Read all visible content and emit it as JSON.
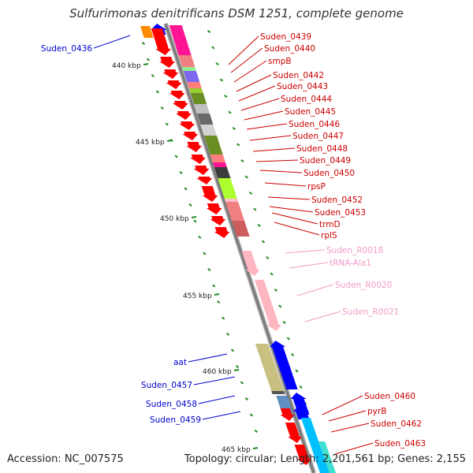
{
  "title": "Sulfurimonas denitrificans DSM 1251, complete genome",
  "footer": {
    "accession": "Accession: NC_007575",
    "summary": "Topology: circular; Length: 2,201,561 bp; Genes: 2,155"
  },
  "colors": {
    "backbone": "#7a7a7a",
    "forward_label": "#0000cc",
    "reverse_label": "#cc0000",
    "rna_label": "#f09ac8",
    "tick": "#228b22"
  },
  "scale_labels": [
    "440 kbp",
    "445 kbp",
    "450 kbp",
    "455 kbp",
    "460 kbp",
    "465 kbp"
  ],
  "genes_forward": [
    {
      "label": "Suden_0436"
    },
    {
      "label": "aat"
    },
    {
      "label": "Suden_0457"
    },
    {
      "label": "Suden_0458"
    },
    {
      "label": "Suden_0459"
    }
  ],
  "genes_reverse": [
    {
      "label": "Suden_0439"
    },
    {
      "label": "Suden_0440"
    },
    {
      "label": "smpB"
    },
    {
      "label": "Suden_0442"
    },
    {
      "label": "Suden_0443"
    },
    {
      "label": "Suden_0444"
    },
    {
      "label": "Suden_0445"
    },
    {
      "label": "Suden_0446"
    },
    {
      "label": "Suden_0447"
    },
    {
      "label": "Suden_0448"
    },
    {
      "label": "Suden_0449"
    },
    {
      "label": "Suden_0450"
    },
    {
      "label": "rpsP"
    },
    {
      "label": "Suden_0452"
    },
    {
      "label": "Suden_0453"
    },
    {
      "label": "trmD"
    },
    {
      "label": "rplS"
    },
    {
      "label": "Suden_0460"
    },
    {
      "label": "pyrB"
    },
    {
      "label": "Suden_0462"
    },
    {
      "label": "Suden_0463"
    }
  ],
  "genes_rna": [
    {
      "label": "Suden_R0018"
    },
    {
      "label": "tRNA-Ala1"
    },
    {
      "label": "Suden_R0020"
    },
    {
      "label": "Suden_R0021"
    }
  ]
}
